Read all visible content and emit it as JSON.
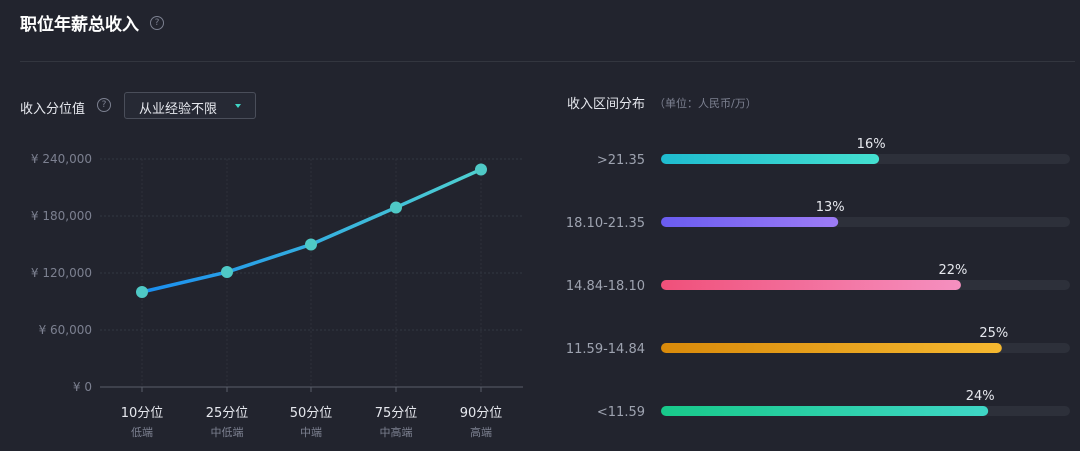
{
  "title": "职位年薪总收入",
  "left_panel": {
    "label": "收入分位值",
    "dropdown": {
      "selected": "从业经验不限"
    }
  },
  "right_panel": {
    "title": "收入区间分布",
    "unit": "（单位：人民币/万）"
  },
  "chart_data": [
    {
      "type": "line",
      "categories": [
        "10分位",
        "25分位",
        "50分位",
        "75分位",
        "90分位"
      ],
      "sub_labels": [
        "低端",
        "中低端",
        "中端",
        "中高端",
        "高端"
      ],
      "yticks": [
        "¥ 0",
        "¥ 60,000",
        "¥ 120,000",
        "¥ 180,000",
        "¥ 240,000"
      ],
      "ylim": [
        0,
        240000
      ],
      "series": [
        {
          "values": [
            100000,
            121000,
            150000,
            189000,
            229000
          ]
        }
      ],
      "grid": true
    },
    {
      "type": "bar",
      "orientation": "horizontal",
      "categories": [
        ">21.35",
        "18.10-21.35",
        "14.84-18.10",
        "11.59-14.84",
        "<11.59"
      ],
      "values": [
        16,
        13,
        22,
        25,
        24
      ],
      "labels": [
        "16%",
        "13%",
        "22%",
        "25%",
        "24%"
      ],
      "xlim": [
        0,
        30
      ],
      "colors": [
        [
          "#1fbcd0",
          "#44e0d0"
        ],
        [
          "#6a5cf0",
          "#9d7cf5"
        ],
        [
          "#f0507a",
          "#f590c0"
        ],
        [
          "#d98a0a",
          "#f5b830"
        ],
        [
          "#18c98a",
          "#3fd6c6"
        ]
      ]
    }
  ]
}
